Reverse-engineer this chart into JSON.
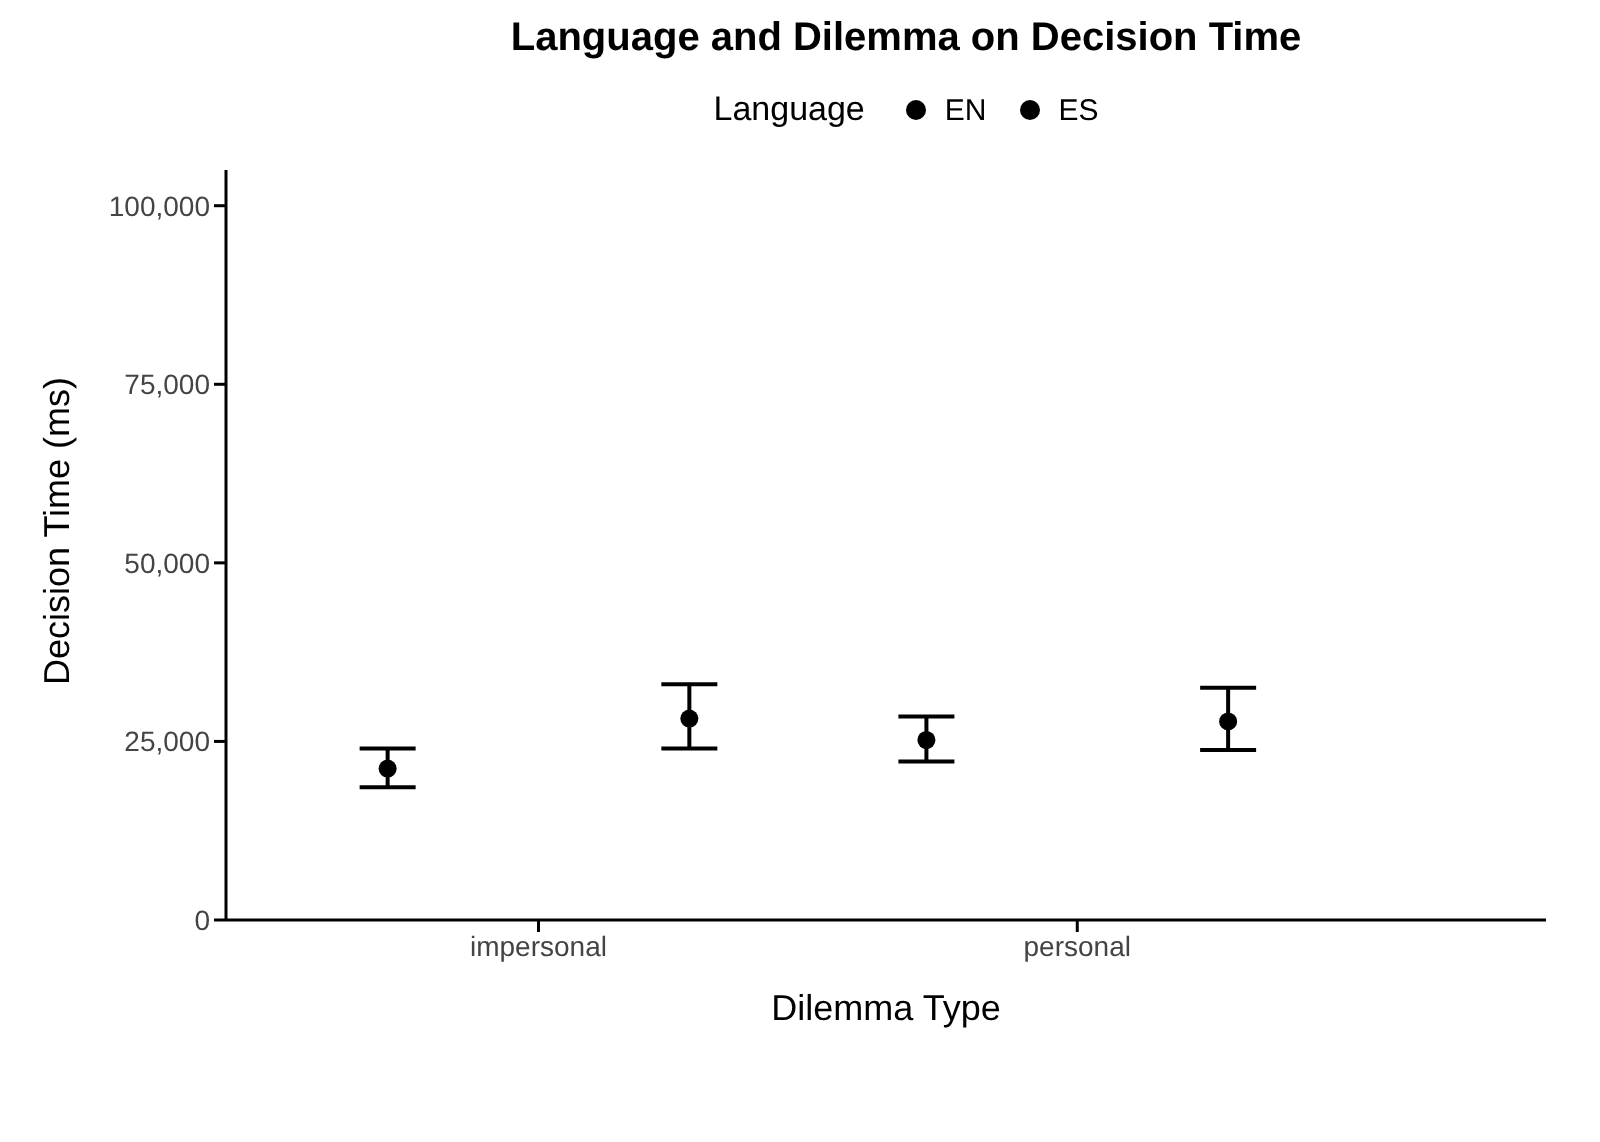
{
  "chart_data": {
    "type": "scatter",
    "title": "Language and Dilemma on Decision Time",
    "xlabel": "Dilemma Type",
    "ylabel": "Decision Time (ms)",
    "legend_title": "Language",
    "categories": [
      "impersonal",
      "personal"
    ],
    "series": [
      {
        "name": "EN",
        "color": "#000000",
        "values": [
          21200,
          25200
        ],
        "errors": [
          [
            18600,
            24000
          ],
          [
            22200,
            28500
          ]
        ]
      },
      {
        "name": "ES",
        "color": "#000000",
        "values": [
          28200,
          27800
        ],
        "errors": [
          [
            24000,
            33000
          ],
          [
            23800,
            32500
          ]
        ]
      }
    ],
    "ylim": [
      0,
      105000
    ],
    "yticks": [
      {
        "value": 0,
        "label": "0"
      },
      {
        "value": 25000,
        "label": "25,000"
      },
      {
        "value": 50000,
        "label": "50,000"
      },
      {
        "value": 75000,
        "label": "75,000"
      },
      {
        "value": 100000,
        "label": "100,000"
      }
    ],
    "grid": false,
    "legend": "top",
    "marker": "circle"
  }
}
